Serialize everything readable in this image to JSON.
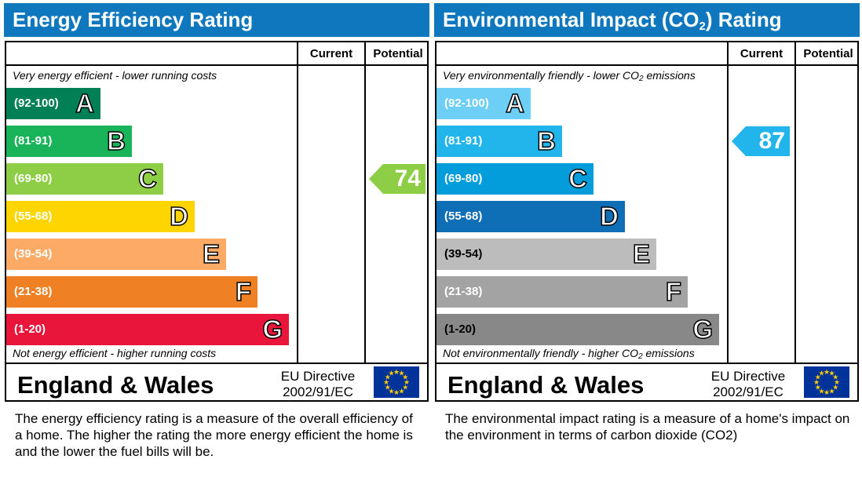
{
  "chart_data": [
    {
      "type": "bar",
      "title": "Energy Efficiency Rating",
      "columns": [
        "Current",
        "Potential"
      ],
      "top_note": "Very energy efficient - lower running costs",
      "bottom_note": "Not energy efficient - higher running costs",
      "bands": [
        {
          "range": "(92-100)",
          "letter": "A",
          "color": "#008054"
        },
        {
          "range": "(81-91)",
          "letter": "B",
          "color": "#19b459"
        },
        {
          "range": "(69-80)",
          "letter": "C",
          "color": "#8dce46"
        },
        {
          "range": "(55-68)",
          "letter": "D",
          "color": "#ffd500"
        },
        {
          "range": "(39-54)",
          "letter": "E",
          "color": "#fcaa65"
        },
        {
          "range": "(21-38)",
          "letter": "F",
          "color": "#ef8023"
        },
        {
          "range": "(1-20)",
          "letter": "G",
          "color": "#e9153b"
        }
      ],
      "current": null,
      "potential": {
        "value": 74,
        "band": "C",
        "color": "#8dce46"
      },
      "footer": "England & Wales",
      "directive": [
        "EU Directive",
        "2002/91/EC"
      ],
      "description": "The energy efficiency rating is a measure of the overall efficiency of a home.  The higher the rating the more energy efficient the home is and the lower the fuel bills will be."
    },
    {
      "type": "bar",
      "title": "Environmental Impact (CO2) Rating",
      "columns": [
        "Current",
        "Potential"
      ],
      "top_note": "Very environmentally friendly - lower CO2 emissions",
      "bottom_note": "Not environmentally friendly - higher CO2 emissions",
      "bands": [
        {
          "range": "(92-100)",
          "letter": "A",
          "color": "#6dcff6"
        },
        {
          "range": "(81-91)",
          "letter": "B",
          "color": "#22b5ec"
        },
        {
          "range": "(69-80)",
          "letter": "C",
          "color": "#039ddb"
        },
        {
          "range": "(55-68)",
          "letter": "D",
          "color": "#0f6fb6"
        },
        {
          "range": "(39-54)",
          "letter": "E",
          "color": "#bcbcbc"
        },
        {
          "range": "(21-38)",
          "letter": "F",
          "color": "#a3a3a3"
        },
        {
          "range": "(1-20)",
          "letter": "G",
          "color": "#888888"
        }
      ],
      "current": {
        "value": 87,
        "band": "B",
        "color": "#22b5ec"
      },
      "potential": null,
      "footer": "England & Wales",
      "directive": [
        "EU Directive",
        "2002/91/EC"
      ],
      "description": "The environmental impact rating is a measure of a home's impact on the environment in terms of carbon dioxide (CO2)"
    }
  ]
}
